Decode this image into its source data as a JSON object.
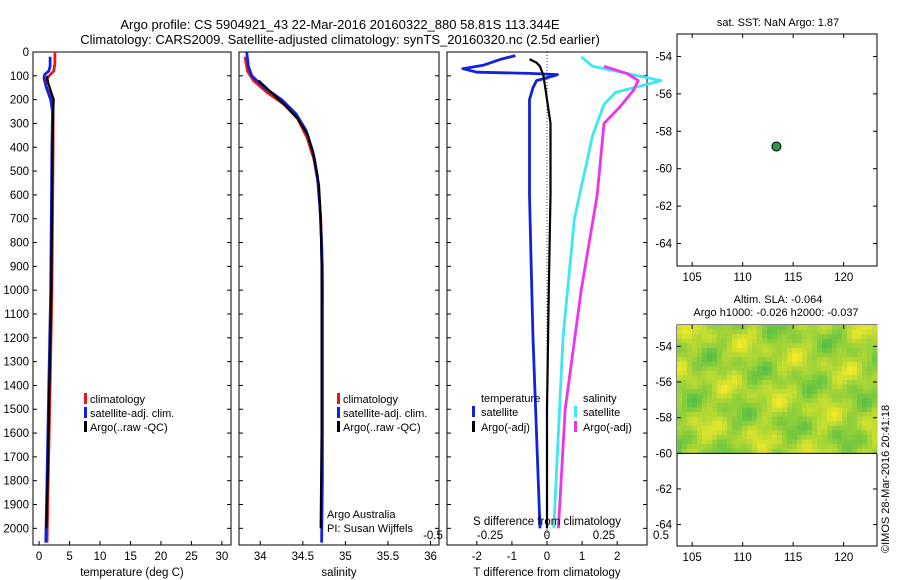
{
  "header": {
    "line1": "Argo profile: CS 5904921_43 22-Mar-2016 20160322_880 58.81S 113.344E",
    "line2": "Climatology: CARS2009. Satellite-adjusted climatology: synTS_20160320.nc (2.5d earlier)"
  },
  "colors": {
    "climatology": "#e8151b",
    "satellite": "#1122dd",
    "argo": "#000000",
    "salinity_sat": "#3ee8f0",
    "salinity_argo": "#ee33ee",
    "marker": "#2e9a4a"
  },
  "credit": "©IMOS 28-Mar-2016 20:41:18",
  "footer_text": {
    "org": "Argo Australia",
    "pi": "PI: Susan Wijffels"
  },
  "chart_data": [
    {
      "type": "line",
      "name": "temperature-profile",
      "xlabel": "temperature (deg C)",
      "xlim": [
        -1,
        31.5
      ],
      "xticks": [
        0,
        5,
        10,
        15,
        20,
        25,
        30
      ],
      "ylim": [
        0,
        2070
      ],
      "yticks": [
        0,
        100,
        200,
        300,
        400,
        500,
        600,
        700,
        800,
        900,
        1000,
        1100,
        1200,
        1300,
        1400,
        1500,
        1600,
        1700,
        1800,
        1900,
        2000
      ],
      "legend": [
        "climatology",
        "satellite-adj. clim.",
        "Argo(..raw -QC)"
      ],
      "series": [
        {
          "name": "climatology",
          "color": "#e8151b",
          "points": [
            [
              2.6,
              0
            ],
            [
              2.6,
              50
            ],
            [
              2.4,
              80
            ],
            [
              1.3,
              110
            ],
            [
              1.1,
              140
            ],
            [
              1.6,
              170
            ],
            [
              2.1,
              200
            ],
            [
              2.3,
              240
            ],
            [
              2.3,
              400
            ],
            [
              2.2,
              700
            ],
            [
              2.1,
              1000
            ],
            [
              1.8,
              1400
            ],
            [
              1.5,
              1800
            ],
            [
              1.3,
              2060
            ]
          ]
        },
        {
          "name": "satellite-adj. clim.",
          "color": "#1122dd",
          "points": [
            [
              1.8,
              20
            ],
            [
              1.8,
              60
            ],
            [
              1.6,
              80
            ],
            [
              0.9,
              95
            ],
            [
              0.8,
              110
            ],
            [
              1.2,
              150
            ],
            [
              1.9,
              200
            ],
            [
              2.2,
              250
            ],
            [
              2.1,
              400
            ],
            [
              2.0,
              700
            ],
            [
              1.9,
              1000
            ],
            [
              1.6,
              1400
            ],
            [
              1.3,
              1800
            ],
            [
              1.1,
              2060
            ]
          ]
        },
        {
          "name": "Argo(..raw -QC)",
          "color": "#000000",
          "points": [
            [
              1.3,
              100
            ],
            [
              1.5,
              130
            ],
            [
              2.0,
              170
            ],
            [
              2.4,
              200
            ],
            [
              2.3,
              260
            ],
            [
              2.2,
              400
            ],
            [
              2.1,
              700
            ],
            [
              2.0,
              1000
            ],
            [
              1.7,
              1400
            ],
            [
              1.4,
              1800
            ],
            [
              1.2,
              2000
            ]
          ]
        }
      ]
    },
    {
      "type": "line",
      "name": "salinity-profile",
      "xlabel": "salinity",
      "xlim": [
        33.75,
        36.1
      ],
      "xticks": [
        34,
        34.5,
        35,
        35.5,
        36
      ],
      "xticklabels": [
        "34",
        "34.5",
        "35",
        "35.5",
        "36"
      ],
      "ylim": [
        0,
        2070
      ],
      "legend": [
        "climatology",
        "satellite-adj. clim.",
        "Argo(..raw -QC)"
      ],
      "series": [
        {
          "name": "climatology",
          "color": "#e8151b",
          "points": [
            [
              33.82,
              20
            ],
            [
              33.85,
              80
            ],
            [
              33.92,
              120
            ],
            [
              34.08,
              170
            ],
            [
              34.28,
              220
            ],
            [
              34.44,
              280
            ],
            [
              34.55,
              360
            ],
            [
              34.63,
              450
            ],
            [
              34.68,
              550
            ],
            [
              34.71,
              700
            ],
            [
              34.73,
              900
            ],
            [
              34.73,
              1060
            ]
          ]
        },
        {
          "name": "satellite-adj. clim.",
          "color": "#1122dd",
          "points": [
            [
              33.84,
              0
            ],
            [
              33.86,
              60
            ],
            [
              33.9,
              100
            ],
            [
              34.05,
              150
            ],
            [
              34.25,
              200
            ],
            [
              34.42,
              260
            ],
            [
              34.54,
              330
            ],
            [
              34.62,
              420
            ],
            [
              34.67,
              520
            ],
            [
              34.7,
              650
            ],
            [
              34.72,
              800
            ],
            [
              34.73,
              1000
            ],
            [
              34.73,
              1400
            ],
            [
              34.73,
              1800
            ],
            [
              34.72,
              2060
            ]
          ]
        },
        {
          "name": "Argo(..raw -QC)",
          "color": "#000000",
          "points": [
            [
              33.98,
              120
            ],
            [
              34.1,
              160
            ],
            [
              34.28,
              220
            ],
            [
              34.44,
              280
            ],
            [
              34.56,
              350
            ],
            [
              34.64,
              450
            ],
            [
              34.69,
              560
            ],
            [
              34.71,
              700
            ],
            [
              34.72,
              900
            ],
            [
              34.72,
              1200
            ],
            [
              34.72,
              1600
            ],
            [
              34.71,
              2000
            ]
          ]
        }
      ]
    },
    {
      "type": "line",
      "name": "difference-profile",
      "xlabel": "T difference from climatology",
      "top_axis_label": "S difference from climatology",
      "xlim": [
        -2.85,
        2.85
      ],
      "xticks": [
        -2,
        -1,
        0,
        1,
        2
      ],
      "top_ticks": [
        -0.5,
        -0.25,
        0,
        0.25,
        0.5
      ],
      "top_ticklabels": [
        "-0.5",
        "-0.25",
        "0",
        "0.25",
        "0.5"
      ],
      "ylim": [
        0,
        2070
      ],
      "legend": {
        "temperature_title": "temperature",
        "salinity_title": "salinity",
        "temperature": [
          "satellite",
          "Argo(-adj)"
        ],
        "salinity": [
          "satellite",
          "Argo(-adj)"
        ]
      },
      "series": [
        {
          "name": "temperature satellite",
          "color": "#1122dd",
          "points": [
            [
              -0.9,
              15
            ],
            [
              -1.3,
              30
            ],
            [
              -1.8,
              55
            ],
            [
              -2.4,
              70
            ],
            [
              -2.0,
              85
            ],
            [
              -0.5,
              90
            ],
            [
              0.3,
              95
            ],
            [
              0.2,
              100
            ],
            [
              -0.3,
              120
            ],
            [
              -0.4,
              150
            ],
            [
              -0.5,
              200
            ],
            [
              -0.5,
              300
            ],
            [
              -0.5,
              600
            ],
            [
              -0.45,
              900
            ],
            [
              -0.4,
              1200
            ],
            [
              -0.3,
              1600
            ],
            [
              -0.2,
              2000
            ]
          ]
        },
        {
          "name": "temperature Argo(-adj)",
          "color": "#000000",
          "points": [
            [
              -0.5,
              30
            ],
            [
              -0.3,
              45
            ],
            [
              -0.2,
              60
            ],
            [
              -0.1,
              100
            ],
            [
              0.0,
              200
            ],
            [
              0.1,
              300
            ],
            [
              0.1,
              600
            ],
            [
              0.05,
              1000
            ],
            [
              0.0,
              1500
            ],
            [
              0.0,
              2000
            ]
          ]
        },
        {
          "name": "salinity satellite",
          "color": "#3ee8f0",
          "points": [
            [
              0.15,
              20
            ],
            [
              0.2,
              60
            ],
            [
              0.35,
              90
            ],
            [
              0.5,
              120
            ],
            [
              0.3,
              170
            ],
            [
              0.25,
              220
            ],
            [
              0.2,
              350
            ],
            [
              0.12,
              700
            ],
            [
              0.07,
              1200
            ],
            [
              0.03,
              2000
            ]
          ]
        },
        {
          "name": "salinity Argo(-adj)",
          "color": "#ee33ee",
          "points": [
            [
              0.25,
              60
            ],
            [
              0.35,
              90
            ],
            [
              0.4,
              120
            ],
            [
              0.38,
              160
            ],
            [
              0.32,
              230
            ],
            [
              0.25,
              300
            ],
            [
              0.22,
              600
            ],
            [
              0.15,
              1000
            ],
            [
              0.08,
              1500
            ],
            [
              0.05,
              2000
            ]
          ]
        }
      ]
    },
    {
      "type": "scatter",
      "name": "sst-map",
      "title": "sat. SST: NaN Argo: 1.87",
      "xlim": [
        103.5,
        123.3
      ],
      "ylim": [
        -65.2,
        -52.8
      ],
      "xticks": [
        105,
        110,
        115,
        120
      ],
      "yticks": [
        -54,
        -56,
        -58,
        -60,
        -62,
        -64
      ],
      "points": [
        [
          113.344,
          -58.81
        ]
      ]
    },
    {
      "type": "heatmap",
      "name": "sla-map",
      "title": "Altim. SLA: -0.064",
      "subtitle": "Argo h1000: -0.026 h2000: -0.037",
      "xlim": [
        103.5,
        123.3
      ],
      "ylim": [
        -65.2,
        -52.8
      ],
      "xticks": [
        105,
        110,
        115,
        120
      ],
      "yticks": [
        -54,
        -56,
        -58,
        -60,
        -62,
        -64
      ],
      "data_extent_lat": [
        -60,
        -52.8
      ]
    }
  ]
}
